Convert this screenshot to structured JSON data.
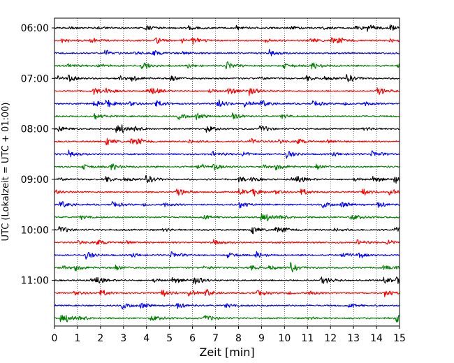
{
  "chart_data": {
    "type": "line",
    "title": "",
    "xlabel": "Zeit  [min]",
    "ylabel": "UTC (Lokalzeit = UTC + 01:00)",
    "xlim": [
      0,
      15
    ],
    "x_ticks": [
      "0",
      "1",
      "2",
      "3",
      "4",
      "5",
      "6",
      "7",
      "8",
      "9",
      "10",
      "11",
      "12",
      "13",
      "14",
      "15"
    ],
    "y_tick_labels": [
      "06:00",
      "07:00",
      "08:00",
      "09:00",
      "10:00",
      "11:00"
    ],
    "trace_start_time": "06:00",
    "trace_interval_min": 15,
    "trace_count": 24,
    "trace_colors": [
      "#000000",
      "#ff0000",
      "#0000ff",
      "#008000"
    ],
    "grid": "vertical dotted",
    "legend": "none"
  }
}
